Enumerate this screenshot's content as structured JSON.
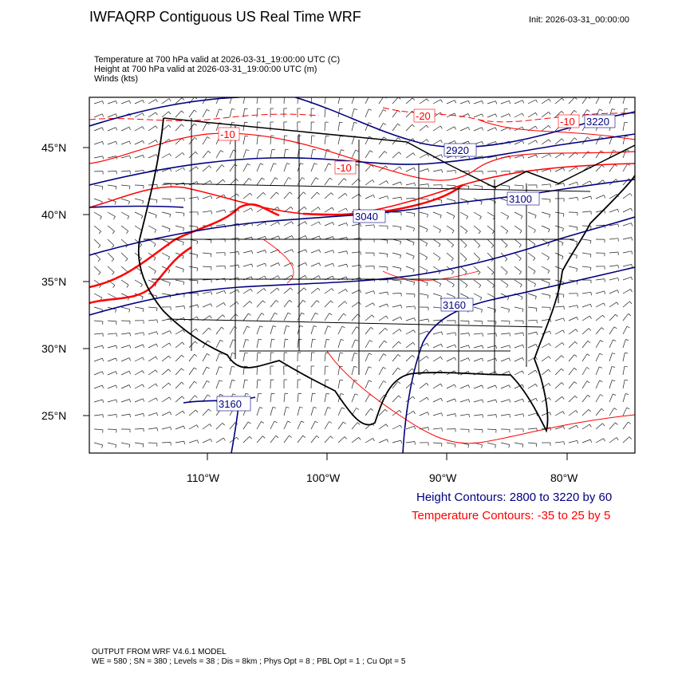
{
  "header": {
    "title": "IWFAQRP Contiguous US Real Time WRF",
    "init": "Init: 2026-03-31_00:00:00"
  },
  "variables": [
    "Temperature at 700 hPa valid at 2026-03-31_19:00:00 UTC   (C)",
    "Height at 700 hPa valid at 2026-03-31_19:00:00 UTC   (m)",
    "Winds   (kts)"
  ],
  "map": {
    "lat_labels": [
      "45°N",
      "40°N",
      "35°N",
      "30°N",
      "25°N"
    ],
    "lon_labels": [
      "110°W",
      "100°W",
      "90°W",
      "80°W"
    ],
    "height_contour_labels": [
      "2920",
      "3040",
      "3100",
      "3160",
      "3160",
      "3220"
    ],
    "temp_contour_labels": [
      "-20",
      "-10",
      "-10",
      "-10"
    ],
    "colors": {
      "height": "#000080",
      "temperature": "#ff0000",
      "land": "#000000"
    }
  },
  "legend": {
    "height": "Height Contours: 2800 to 3220 by 60",
    "temperature": "Temperature Contours: -35 to 25 by 5"
  },
  "footer": {
    "line1": "OUTPUT FROM WRF V4.6.1 MODEL",
    "line2": "WE = 580 ; SN = 380 ; Levels = 38 ; Dis = 8km ; Phys Opt = 8 ; PBL Opt = 1 ; Cu Opt = 5"
  }
}
